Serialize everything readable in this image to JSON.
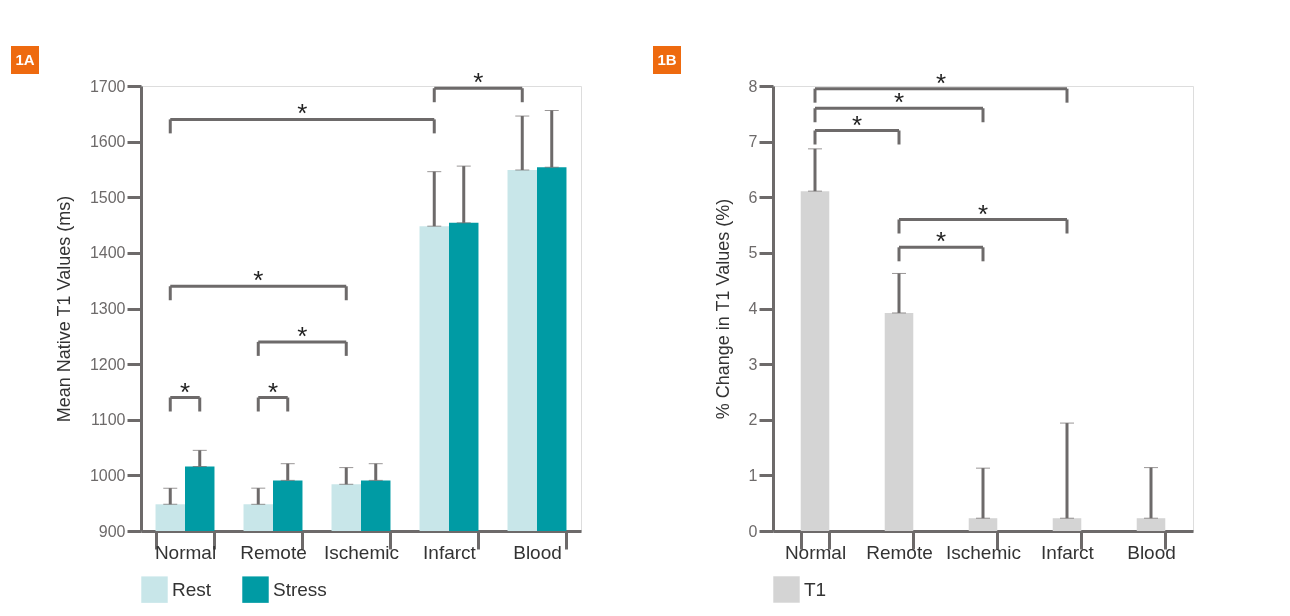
{
  "chart_data": [
    {
      "type": "bar",
      "title": "1A",
      "ylabel": "Mean Native T1 Values (ms)",
      "categories": [
        "Normal",
        "Remote",
        "Ischemic",
        "Infarct",
        "Blood"
      ],
      "series": [
        {
          "name": "Rest",
          "color": "#c8e6e9",
          "values": [
            948,
            948,
            984,
            1448,
            1549
          ],
          "errors": [
            [
              948,
              977
            ],
            [
              948,
              977
            ],
            [
              984,
              1014
            ],
            [
              1448,
              1546
            ],
            [
              1549,
              1646
            ]
          ]
        },
        {
          "name": "Stress",
          "color": "#009ba4",
          "values": [
            1016,
            991,
            991,
            1454,
            1554
          ],
          "errors": [
            [
              1016,
              1045
            ],
            [
              991,
              1021
            ],
            [
              991,
              1021
            ],
            [
              1454,
              1556
            ],
            [
              1554,
              1656
            ]
          ]
        }
      ],
      "ylim": [
        900,
        1700
      ],
      "yticks": [
        900,
        1000,
        1100,
        1200,
        1300,
        1400,
        1500,
        1600,
        1700
      ],
      "grid": false,
      "legend": "bottom",
      "annotations": [
        "*",
        "*",
        "*",
        "*",
        "*",
        "*"
      ]
    },
    {
      "type": "bar",
      "title": "1B",
      "ylabel": "% Change in T1 Values (%)",
      "categories": [
        "Normal",
        "Remote",
        "Ischemic",
        "Infarct",
        "Blood"
      ],
      "series": [
        {
          "name": "T1",
          "color": "#d4d4d4",
          "values": [
            6.11,
            3.92,
            0.23,
            0.23,
            0.23
          ],
          "errors": [
            [
              6.11,
              6.87
            ],
            [
              3.92,
              4.63
            ],
            [
              0.23,
              1.13
            ],
            [
              0.23,
              1.94
            ],
            [
              0.23,
              1.14
            ]
          ]
        }
      ],
      "ylim": [
        0,
        8
      ],
      "yticks": [
        0,
        1,
        2,
        3,
        4,
        5,
        6,
        7,
        8
      ],
      "grid": false,
      "legend": "bottom",
      "annotations": [
        "*",
        "*",
        "*",
        "*",
        "*"
      ]
    }
  ]
}
